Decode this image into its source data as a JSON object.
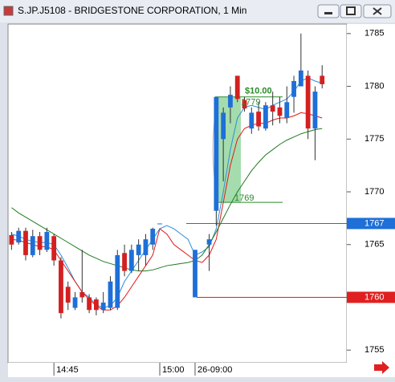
{
  "chart_data": {
    "type": "candlestick",
    "title": "S.JP.J5108 - BRIDGESTONE CORPORATION, 1 Min",
    "categories": [
      null,
      null,
      null,
      null,
      null,
      null,
      "14:45",
      null,
      null,
      null,
      null,
      null,
      null,
      null,
      null,
      null,
      null,
      null,
      null,
      null,
      null,
      "15:00",
      null,
      null,
      null,
      null,
      "26-09:00",
      null,
      null,
      null,
      null,
      null,
      null,
      null,
      null,
      null,
      null,
      null,
      null,
      null,
      null,
      null,
      null,
      null,
      null
    ],
    "open": [
      1765.9,
      1765.2,
      1766.3,
      1764.0,
      1765.8,
      1764.5,
      1765.8,
      1763.5,
      1761.0,
      1759.0,
      1760.5,
      1760.0,
      1759.8,
      1758.8,
      1759.0,
      1759.0,
      1764.2,
      1762.5,
      1764.0,
      1764.0,
      1765.0,
      1767,
      null,
      null,
      null,
      null,
      1760.0,
      null,
      1765.0,
      1768.2,
      1775.0,
      1778.0,
      1781.0,
      1778.7,
      1776.0,
      1777.6,
      1776.0,
      1778.2,
      1778.0,
      1777.0,
      1779.0,
      1780.0,
      1781.0,
      1776.0,
      1781.0
    ],
    "high": [
      1766.2,
      1766.6,
      1766.6,
      1766.4,
      1766.2,
      1766.6,
      1766.0,
      1763.8,
      1761.5,
      1760.5,
      1764.5,
      1760.3,
      1760.0,
      1760.5,
      1762.0,
      1764.5,
      1765.0,
      1765.0,
      1765.5,
      1766.0,
      1766.6,
      1767,
      null,
      null,
      null,
      null,
      1764.5,
      null,
      1766.0,
      1779.0,
      1778.0,
      1780.0,
      1781.0,
      1779.0,
      1778.0,
      1778.5,
      1778.5,
      1779.5,
      1779.0,
      1780.0,
      1781.0,
      1785.0,
      1781.5,
      1780.0,
      1782.0
    ],
    "low": [
      1764.5,
      1765.0,
      1763.5,
      1763.8,
      1764.0,
      1764.3,
      1763.0,
      1758.0,
      1758.8,
      1758.8,
      1759.5,
      1758.5,
      1758.3,
      1758.5,
      1758.8,
      1758.8,
      1762.0,
      1762.3,
      1762.5,
      1763.0,
      1764.5,
      1767,
      null,
      null,
      null,
      null,
      1760.0,
      null,
      1762.5,
      1766.8,
      1771.0,
      1776.5,
      1778.5,
      1777.6,
      1775.5,
      1775.8,
      1775.8,
      1776.3,
      1776.5,
      1776.5,
      1777.5,
      1780.0,
      1775.0,
      1773.0,
      1779.8
    ],
    "close": [
      1765.0,
      1766.3,
      1764.0,
      1765.8,
      1764.5,
      1766.2,
      1763.5,
      1758.5,
      1759.5,
      1760.0,
      1760.0,
      1758.8,
      1758.8,
      1759.5,
      1761.5,
      1764.0,
      1762.5,
      1764.5,
      1765.0,
      1765.5,
      1766.5,
      1767,
      null,
      null,
      null,
      null,
      1764.5,
      null,
      1765.5,
      1779.0,
      1777.5,
      1779.2,
      1778.8,
      1777.9,
      1777.5,
      1776.2,
      1778.2,
      1777.6,
      1777.2,
      1778.5,
      1780.5,
      1781.5,
      1776.0,
      1779.5,
      1780.2
    ],
    "up_color": "#1e6fd8",
    "down_color": "#d42020",
    "series": [
      {
        "color": "#2b8fd6",
        "values": [
          1766,
          1765.8,
          1765.5,
          1765.3,
          1765.2,
          1765.2,
          1765,
          1764,
          1762.8,
          1761.5,
          1760.5,
          1760,
          1759.3,
          1759,
          1759.2,
          1760,
          1761.5,
          1762.5,
          1763.5,
          1764.5,
          1765.5,
          1766.5,
          1766.8,
          1766.5,
          1766,
          1765.5,
          1764,
          1764.3,
          1764.8,
          1766.5,
          1770,
          1774,
          1777,
          1778,
          1778.2,
          1778,
          1777.8,
          1778.2,
          1778.5,
          1778.8,
          1779.5,
          1780.5,
          1780.8,
          1780.5,
          1780.3
        ]
      },
      {
        "color": "#e01818",
        "values": [
          1765.5,
          1765.4,
          1765.2,
          1765,
          1764.8,
          1764.8,
          1764.5,
          1763.5,
          1762.5,
          1761.5,
          1760.5,
          1759.8,
          1759.2,
          1758.8,
          1758.8,
          1759.2,
          1760,
          1761,
          1762,
          1763,
          1764,
          1766.5,
          1766,
          1765,
          1764.5,
          1764,
          1763.5,
          1763.3,
          1764,
          1765.5,
          1769,
          1772.5,
          1775,
          1776,
          1776.3,
          1776.5,
          1776.5,
          1776.8,
          1777,
          1777,
          1777.2,
          1777.5,
          1777.4,
          1777.2,
          1777
        ]
      },
      {
        "color": "#1f7a1f",
        "values": [
          1768.5,
          1768,
          1767.6,
          1767.2,
          1766.8,
          1766.4,
          1766,
          1765.6,
          1765.2,
          1764.8,
          1764.4,
          1764,
          1763.7,
          1763.4,
          1763.2,
          1763,
          1762.8,
          1762.6,
          1762.5,
          1762.5,
          1762.6,
          1762.8,
          1763,
          1763.1,
          1763.2,
          1763.3,
          1763.5,
          1764,
          1765,
          1766.2,
          1767.5,
          1768.8,
          1770,
          1771,
          1772,
          1772.8,
          1773.5,
          1774,
          1774.5,
          1774.9,
          1775.2,
          1775.5,
          1775.7,
          1775.9,
          1776
        ]
      }
    ],
    "ylim": [
      1753.8,
      1785.9
    ],
    "yticks": [
      1755,
      1760,
      1765,
      1770,
      1775,
      1780,
      1785
    ],
    "annotation": {
      "label": "$10.00",
      "from": 1769,
      "to": 1779,
      "color": "#2a8a2a",
      "fill": "#8fd39a"
    },
    "price_markers": [
      {
        "value": 1767,
        "color": "#1e6fd8"
      },
      {
        "value": 1760,
        "color": "#e02020"
      }
    ]
  }
}
